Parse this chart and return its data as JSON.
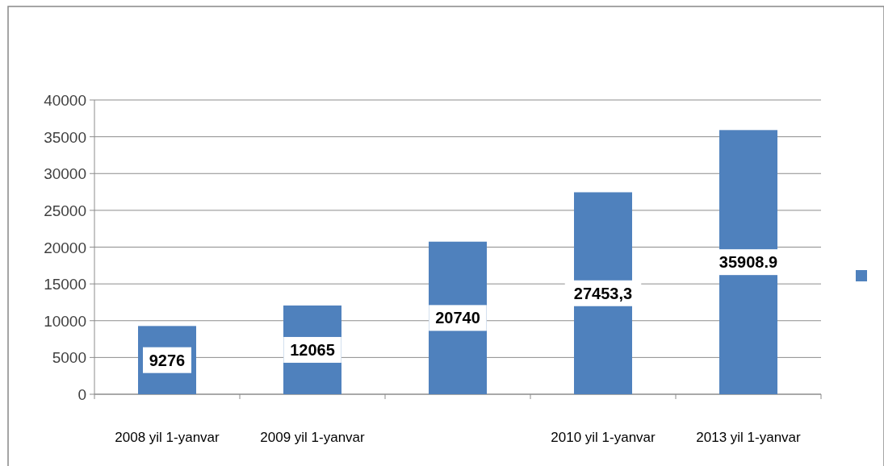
{
  "chart_data": {
    "type": "bar",
    "categories": [
      "2008 yil 1-yanvar",
      "2009 yil 1-yanvar",
      null,
      "2010 yil 1-yanvar",
      "2013 yil 1-yanvar"
    ],
    "series": [
      {
        "color": "#4f81bd",
        "values": [
          9276,
          12065,
          20740,
          27453.3,
          35908.9
        ],
        "value_labels": [
          "9276",
          "12065",
          "20740",
          "27453,3",
          "35908.9"
        ]
      }
    ],
    "ylim": [
      0,
      40000
    ],
    "yticks": [
      0,
      5000,
      10000,
      15000,
      20000,
      25000,
      30000,
      35000,
      40000
    ],
    "grid": "y"
  }
}
